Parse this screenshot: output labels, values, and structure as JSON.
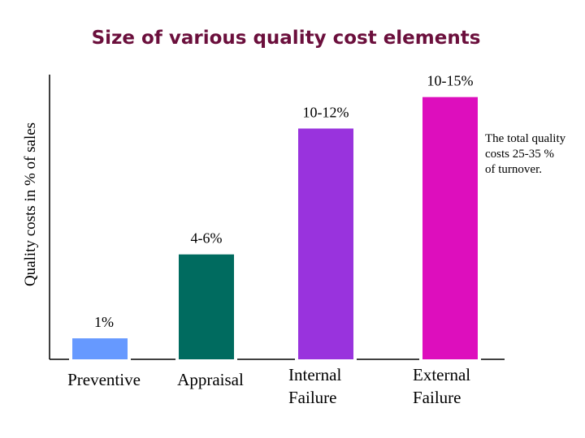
{
  "chart_data": {
    "type": "bar",
    "title": "Size of  various  quality cost  elements",
    "ylabel": "Quality costs in % of sales",
    "xlabel": "",
    "categories": [
      [
        "Preventive"
      ],
      [
        "Appraisal"
      ],
      [
        "Internal",
        "Failure"
      ],
      [
        "External",
        "Failure"
      ]
    ],
    "values": [
      1,
      5,
      11,
      12.5
    ],
    "data_labels": [
      "1%",
      "4-6%",
      "10-12%",
      "10-15%"
    ],
    "colors": [
      "#6699ff",
      "#006b5f",
      "#9933dd",
      "#dd0ebd"
    ],
    "ylim": [
      0,
      15
    ],
    "grid": false,
    "legend": "none",
    "annotation": [
      "The total quality",
      "costs  25-35 %",
      "of turnover."
    ]
  }
}
